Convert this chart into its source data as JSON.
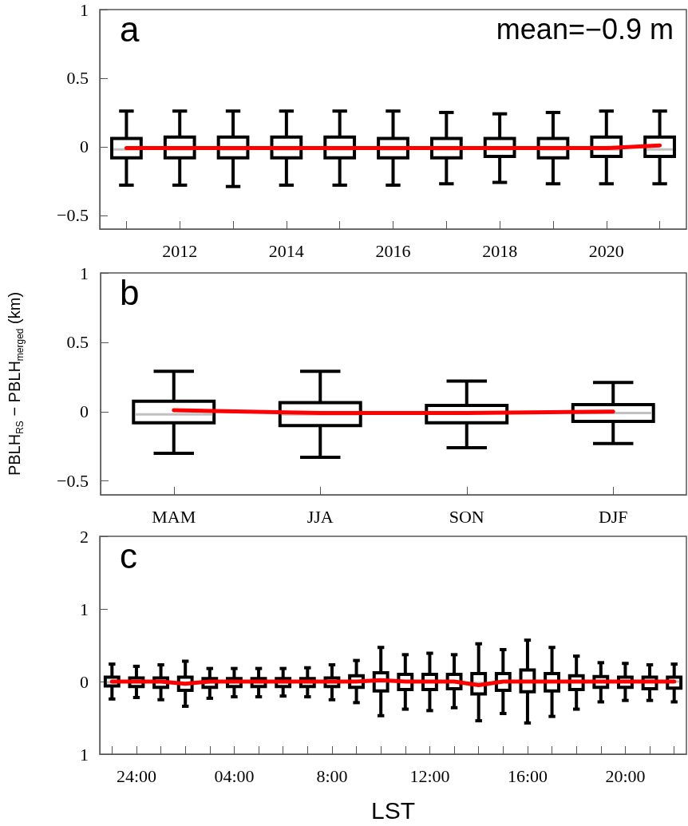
{
  "chart_data": [
    {
      "type": "box",
      "annotations": [
        "a",
        "mean=−0.9 m"
      ],
      "categories": [
        null,
        "2012",
        null,
        "2014",
        null,
        "2016",
        null,
        "2018",
        null,
        "2020",
        null
      ],
      "ylim": [
        -0.6,
        1
      ],
      "yticks": [
        -0.5,
        0,
        0.5,
        1
      ],
      "grid": false,
      "series": [
        {
          "type": "box",
          "color": "#000000",
          "boxes": [
            {
              "low": -0.28,
              "q1": -0.08,
              "median": -0.02,
              "q3": 0.06,
              "high": 0.26
            },
            {
              "low": -0.28,
              "q1": -0.08,
              "median": -0.02,
              "q3": 0.07,
              "high": 0.26
            },
            {
              "low": -0.29,
              "q1": -0.08,
              "median": -0.02,
              "q3": 0.07,
              "high": 0.26
            },
            {
              "low": -0.28,
              "q1": -0.08,
              "median": -0.02,
              "q3": 0.07,
              "high": 0.26
            },
            {
              "low": -0.28,
              "q1": -0.08,
              "median": -0.02,
              "q3": 0.07,
              "high": 0.26
            },
            {
              "low": -0.28,
              "q1": -0.08,
              "median": -0.02,
              "q3": 0.06,
              "high": 0.26
            },
            {
              "low": -0.27,
              "q1": -0.08,
              "median": -0.02,
              "q3": 0.06,
              "high": 0.25
            },
            {
              "low": -0.26,
              "q1": -0.07,
              "median": -0.02,
              "q3": 0.06,
              "high": 0.24
            },
            {
              "low": -0.27,
              "q1": -0.08,
              "median": -0.02,
              "q3": 0.06,
              "high": 0.25
            },
            {
              "low": -0.27,
              "q1": -0.07,
              "median": -0.02,
              "q3": 0.07,
              "high": 0.26
            },
            {
              "low": -0.27,
              "q1": -0.07,
              "median": -0.02,
              "q3": 0.07,
              "high": 0.26
            }
          ]
        },
        {
          "type": "line",
          "color": "#ff0000",
          "marker": "none",
          "values": [
            -0.01,
            -0.01,
            -0.01,
            -0.01,
            -0.01,
            -0.01,
            -0.01,
            -0.01,
            -0.01,
            -0.01,
            0.01
          ]
        }
      ]
    },
    {
      "type": "box",
      "annotations": [
        "b"
      ],
      "ylabel": "PBLH$_{RS}$ − PBLH$_{merged}$ (km)",
      "categories": [
        "MAM",
        "JJA",
        "SON",
        "DJF"
      ],
      "ylim": [
        -0.6,
        1
      ],
      "yticks": [
        -0.5,
        0,
        0.5,
        1
      ],
      "grid": false,
      "series": [
        {
          "type": "box",
          "color": "#000000",
          "boxes": [
            {
              "low": -0.3,
              "q1": -0.08,
              "median": -0.02,
              "q3": 0.075,
              "high": 0.29
            },
            {
              "low": -0.33,
              "q1": -0.1,
              "median": -0.02,
              "q3": 0.065,
              "high": 0.29
            },
            {
              "low": -0.26,
              "q1": -0.08,
              "median": -0.01,
              "q3": 0.045,
              "high": 0.22
            },
            {
              "low": -0.23,
              "q1": -0.07,
              "median": -0.01,
              "q3": 0.05,
              "high": 0.21
            }
          ]
        },
        {
          "type": "line",
          "color": "#ff0000",
          "marker": "none",
          "values": [
            0.01,
            -0.01,
            -0.01,
            0
          ]
        }
      ]
    },
    {
      "type": "box",
      "annotations": [
        "c"
      ],
      "xlabel": "LST",
      "categories": [
        null,
        "24:00",
        null,
        null,
        null,
        "04:00",
        null,
        null,
        null,
        "8:00",
        null,
        null,
        null,
        "12:00",
        null,
        null,
        null,
        "16:00",
        null,
        null,
        null,
        "20:00",
        null,
        null
      ],
      "ylim": [
        -1,
        2
      ],
      "yticks": [
        {
          "value": -1,
          "label": "1"
        },
        0,
        1,
        2
      ],
      "grid": false,
      "series": [
        {
          "type": "box",
          "color": "#000000",
          "boxes": [
            {
              "low": -0.24,
              "q1": -0.06,
              "median": -0.01,
              "q3": 0.06,
              "high": 0.24
            },
            {
              "low": -0.22,
              "q1": -0.07,
              "median": -0.01,
              "q3": 0.05,
              "high": 0.21
            },
            {
              "low": -0.25,
              "q1": -0.08,
              "median": -0.01,
              "q3": 0.05,
              "high": 0.23
            },
            {
              "low": -0.34,
              "q1": -0.12,
              "median": -0.02,
              "q3": 0.06,
              "high": 0.28
            },
            {
              "low": -0.23,
              "q1": -0.08,
              "median": -0.01,
              "q3": 0.04,
              "high": 0.18
            },
            {
              "low": -0.21,
              "q1": -0.07,
              "median": -0.01,
              "q3": 0.04,
              "high": 0.18
            },
            {
              "low": -0.21,
              "q1": -0.07,
              "median": -0.01,
              "q3": 0.04,
              "high": 0.18
            },
            {
              "low": -0.2,
              "q1": -0.07,
              "median": -0.01,
              "q3": 0.04,
              "high": 0.18
            },
            {
              "low": -0.21,
              "q1": -0.07,
              "median": -0.01,
              "q3": 0.04,
              "high": 0.19
            },
            {
              "low": -0.25,
              "q1": -0.07,
              "median": -0.01,
              "q3": 0.05,
              "high": 0.23
            },
            {
              "low": -0.29,
              "q1": -0.08,
              "median": 0,
              "q3": 0.08,
              "high": 0.29
            },
            {
              "low": -0.47,
              "q1": -0.13,
              "median": 0,
              "q3": 0.12,
              "high": 0.47
            },
            {
              "low": -0.38,
              "q1": -0.11,
              "median": 0,
              "q3": 0.1,
              "high": 0.37
            },
            {
              "low": -0.4,
              "q1": -0.11,
              "median": 0,
              "q3": 0.1,
              "high": 0.39
            },
            {
              "low": -0.36,
              "q1": -0.1,
              "median": 0,
              "q3": 0.1,
              "high": 0.37
            },
            {
              "low": -0.54,
              "q1": -0.17,
              "median": -0.02,
              "q3": 0.11,
              "high": 0.52
            },
            {
              "low": -0.44,
              "q1": -0.12,
              "median": 0,
              "q3": 0.11,
              "high": 0.44
            },
            {
              "low": -0.57,
              "q1": -0.14,
              "median": 0,
              "q3": 0.16,
              "high": 0.57
            },
            {
              "low": -0.48,
              "q1": -0.13,
              "median": 0,
              "q3": 0.11,
              "high": 0.47
            },
            {
              "low": -0.38,
              "q1": -0.11,
              "median": 0,
              "q3": 0.08,
              "high": 0.35
            },
            {
              "low": -0.28,
              "q1": -0.08,
              "median": 0,
              "q3": 0.07,
              "high": 0.26
            },
            {
              "low": -0.26,
              "q1": -0.08,
              "median": 0,
              "q3": 0.06,
              "high": 0.25
            },
            {
              "low": -0.26,
              "q1": -0.1,
              "median": 0,
              "q3": 0.06,
              "high": 0.23
            },
            {
              "low": -0.28,
              "q1": -0.09,
              "median": 0,
              "q3": 0.06,
              "high": 0.24
            }
          ]
        },
        {
          "type": "line",
          "color": "#ff0000",
          "marker": "none",
          "values": [
            0,
            0,
            0,
            -0.03,
            0,
            0,
            0,
            0,
            0,
            0,
            0,
            0.02,
            0,
            0,
            0,
            -0.05,
            0,
            0,
            0,
            0,
            0,
            0,
            0,
            0
          ]
        }
      ]
    }
  ]
}
